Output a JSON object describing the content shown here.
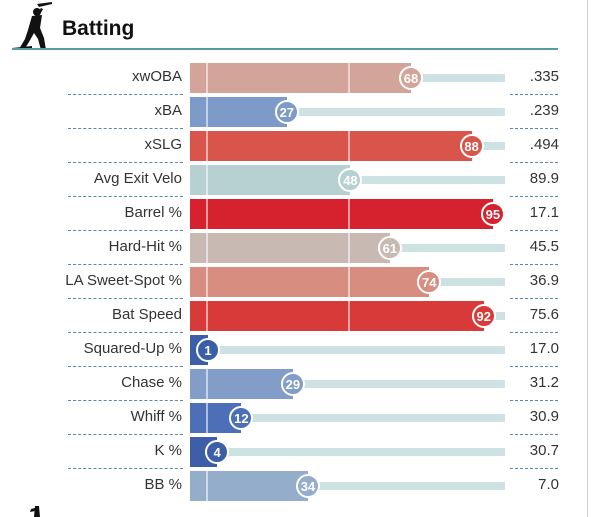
{
  "section": {
    "title": "Batting",
    "icon": "batter-silhouette-icon"
  },
  "rows": [
    {
      "label": "xwOBA",
      "percentile": 68,
      "value": ".335",
      "color": "#d3a49a"
    },
    {
      "label": "xBA",
      "percentile": 27,
      "value": ".239",
      "color": "#7d9bc8"
    },
    {
      "label": "xSLG",
      "percentile": 88,
      "value": ".494",
      "color": "#d9544a"
    },
    {
      "label": "Avg Exit Velo",
      "percentile": 48,
      "value": "89.9",
      "color": "#b7d1d2"
    },
    {
      "label": "Barrel %",
      "percentile": 95,
      "value": "17.1",
      "color": "#d6222e"
    },
    {
      "label": "Hard-Hit %",
      "percentile": 61,
      "value": "45.5",
      "color": "#c8b9b3"
    },
    {
      "label": "LA Sweet-Spot %",
      "percentile": 74,
      "value": "36.9",
      "color": "#d78d7f"
    },
    {
      "label": "Bat Speed",
      "percentile": 92,
      "value": "75.6",
      "color": "#d73a39"
    },
    {
      "label": "Squared-Up %",
      "percentile": 1,
      "value": "17.0",
      "color": "#3a5ea8"
    },
    {
      "label": "Chase %",
      "percentile": 29,
      "value": "31.2",
      "color": "#819dc8"
    },
    {
      "label": "Whiff %",
      "percentile": 12,
      "value": "30.9",
      "color": "#4d6fb7"
    },
    {
      "label": "K %",
      "percentile": 4,
      "value": "30.7",
      "color": "#3e5fa8"
    },
    {
      "label": "BB %",
      "percentile": 34,
      "value": "7.0",
      "color": "#94adcb"
    }
  ]
}
